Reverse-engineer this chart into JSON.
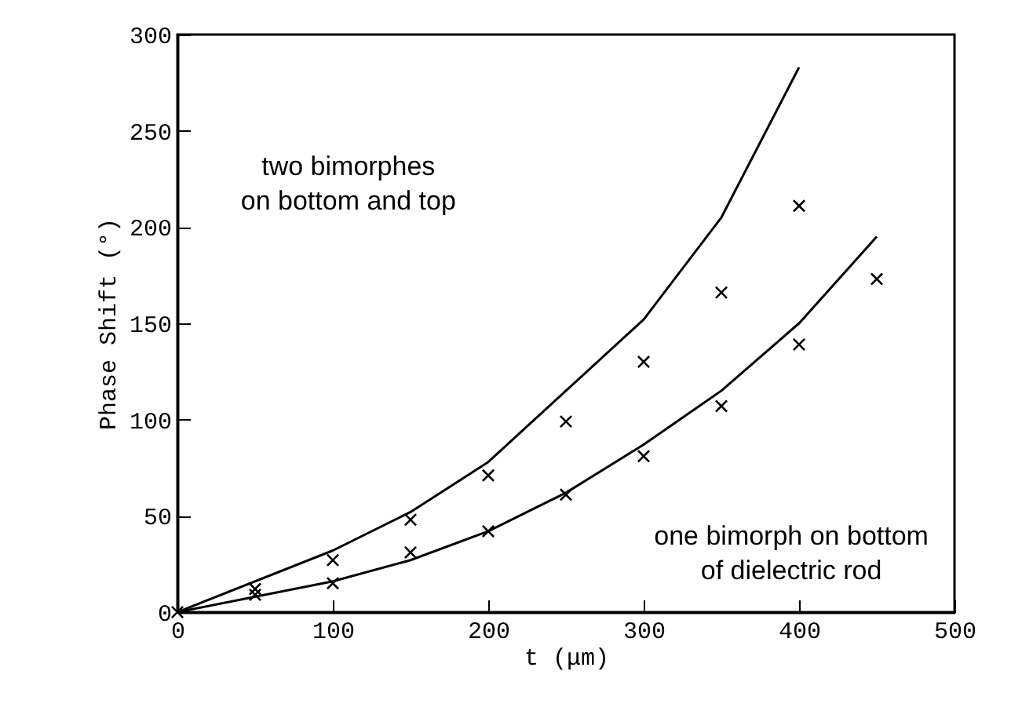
{
  "chart_data": {
    "type": "line",
    "xlabel": "t (μm)",
    "ylabel": "Phase Shift (°)",
    "xlim": [
      0,
      500
    ],
    "xticks": [
      0,
      100,
      200,
      300,
      400,
      500
    ],
    "ylim": [
      0,
      300
    ],
    "yticks": [
      0,
      50,
      100,
      150,
      200,
      250,
      300
    ],
    "grid": false,
    "line_style": "solid",
    "series": [
      {
        "color": "#000000",
        "x": [
          0,
          100,
          150,
          200,
          250,
          300,
          350,
          400
        ],
        "values": [
          0,
          32,
          52,
          78,
          115,
          152,
          205,
          283
        ]
      },
      {
        "color": "#000000",
        "x": [
          0,
          100,
          150,
          200,
          250,
          300,
          350,
          400,
          450
        ],
        "values": [
          0,
          16,
          27,
          42,
          62,
          87,
          115,
          150,
          195
        ]
      },
      {
        "type": "scatter",
        "marker": "cross",
        "color": "#000000",
        "x": [
          0,
          50,
          100,
          150,
          200,
          250,
          300,
          350,
          400
        ],
        "values": [
          0,
          12,
          27,
          48,
          71,
          99,
          130,
          166,
          211
        ]
      },
      {
        "type": "scatter",
        "marker": "cross",
        "color": "#000000",
        "x": [
          50,
          100,
          150,
          200,
          250,
          300,
          350,
          400,
          450
        ],
        "values": [
          9,
          15,
          31,
          42,
          61,
          81,
          107,
          139,
          173
        ]
      }
    ],
    "annotations": [
      "two bimorphes\non bottom and top",
      "one bimorph on bottom\nof dielectric rod"
    ]
  }
}
